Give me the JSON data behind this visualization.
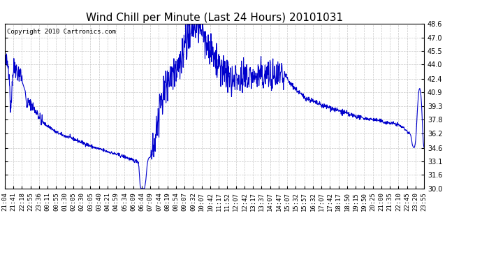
{
  "title": "Wind Chill per Minute (Last 24 Hours) 20101031",
  "copyright": "Copyright 2010 Cartronics.com",
  "line_color": "#0000cc",
  "bg_color": "#ffffff",
  "grid_color": "#c8c8c8",
  "ylim": [
    30.0,
    48.6
  ],
  "yticks": [
    30.0,
    31.6,
    33.1,
    34.6,
    36.2,
    37.8,
    39.3,
    40.9,
    42.4,
    44.0,
    45.5,
    47.0,
    48.6
  ],
  "xtick_labels": [
    "21:04",
    "21:41",
    "22:18",
    "22:55",
    "23:36",
    "00:11",
    "00:55",
    "01:30",
    "02:05",
    "02:30",
    "03:05",
    "03:40",
    "04:21",
    "04:59",
    "05:34",
    "06:09",
    "06:44",
    "07:09",
    "07:44",
    "08:19",
    "08:54",
    "09:07",
    "09:32",
    "10:07",
    "10:42",
    "11:17",
    "11:52",
    "12:07",
    "12:42",
    "13:17",
    "13:37",
    "14:07",
    "14:47",
    "15:07",
    "15:32",
    "15:57",
    "16:32",
    "17:07",
    "17:42",
    "18:17",
    "18:50",
    "19:15",
    "19:50",
    "20:25",
    "21:00",
    "21:35",
    "22:10",
    "22:45",
    "23:20",
    "23:55"
  ],
  "title_fontsize": 11,
  "tick_fontsize": 6.5,
  "copyright_fontsize": 6.5,
  "linewidth": 0.8
}
